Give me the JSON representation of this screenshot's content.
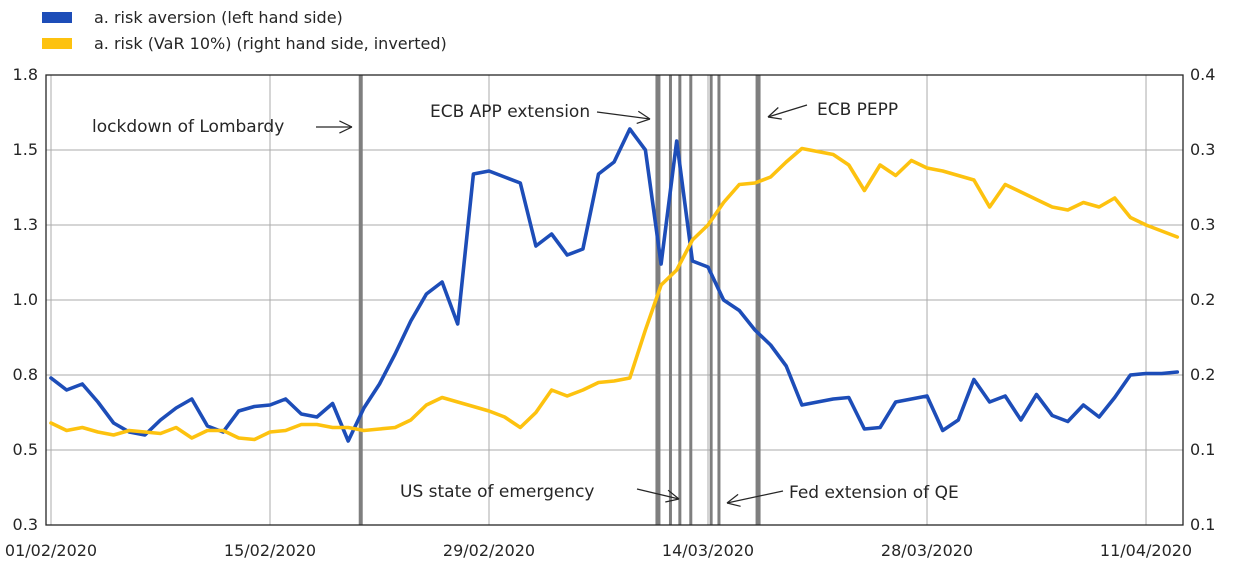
{
  "chart": {
    "legend": [
      {
        "label": "a. risk aversion (left hand side)",
        "color": "#1d4db8"
      },
      {
        "label": "a. risk (VaR 10%) (right hand side, inverted)",
        "color": "#fdc20f"
      }
    ],
    "annotations": [
      {
        "id": "lombardy-lockdown",
        "label": "lockdown of Lombardy"
      },
      {
        "id": "ecb-app-extension",
        "label": "ECB APP extension"
      },
      {
        "id": "ecb-pepp",
        "label": "ECB PEPP"
      },
      {
        "id": "us-state-of-emergency",
        "label": "US state of emergency"
      },
      {
        "id": "fed-qe-extension",
        "label": "Fed extension of QE"
      }
    ]
  },
  "chart_data": {
    "type": "line",
    "title": "",
    "x_axis": {
      "tick_labels": [
        "01/02/2020",
        "15/02/2020",
        "29/02/2020",
        "14/03/2020",
        "28/03/2020",
        "11/04/2020"
      ],
      "tick_days": [
        0,
        14,
        28,
        42,
        56,
        70
      ],
      "unit": "daily observations starting 01/02/2020"
    },
    "left_axis": {
      "tick_labels": [
        "1.8",
        "1.5",
        "1.3",
        "1.0",
        "0.8",
        "0.5",
        "0.3"
      ],
      "range": [
        0.25,
        1.75
      ],
      "label": "risk aversion"
    },
    "right_axis": {
      "tick_labels": [
        "0.4",
        "0.3",
        "0.3",
        "0.2",
        "0.2",
        "0.1",
        "0.1"
      ],
      "range": [
        0.1,
        0.4
      ],
      "note": "inverted"
    },
    "grid": true,
    "legend_position": "top-left",
    "series_start_day": 0,
    "series_step_days": 1,
    "series": [
      {
        "name": "a. risk aversion (left hand side)",
        "axis": "left",
        "color": "#1d4db8",
        "values": [
          0.74,
          0.7,
          0.72,
          0.66,
          0.59,
          0.56,
          0.55,
          0.6,
          0.64,
          0.67,
          0.58,
          0.56,
          0.63,
          0.645,
          0.65,
          0.67,
          0.62,
          0.61,
          0.655,
          0.53,
          0.64,
          0.72,
          0.82,
          0.93,
          1.02,
          1.06,
          0.92,
          1.42,
          1.43,
          1.41,
          1.39,
          1.18,
          1.22,
          1.15,
          1.17,
          1.42,
          1.46,
          1.57,
          1.5,
          1.12,
          1.53,
          1.13,
          1.11,
          1.0,
          0.965,
          0.9,
          0.85,
          0.78,
          0.65,
          0.66,
          0.67,
          0.675,
          0.57,
          0.575,
          0.66,
          0.67,
          0.68,
          0.565,
          0.6,
          0.735,
          0.66,
          0.68,
          0.6,
          0.685,
          0.615,
          0.595,
          0.65,
          0.61,
          0.675,
          0.75,
          0.755,
          0.755,
          0.76
        ]
      },
      {
        "name": "a. risk (VaR 10%) (right hand side, inverted)",
        "axis": "right",
        "color": "#fdc20f",
        "values": [
          0.168,
          0.163,
          0.165,
          0.162,
          0.16,
          0.163,
          0.162,
          0.161,
          0.165,
          0.158,
          0.163,
          0.163,
          0.158,
          0.157,
          0.162,
          0.163,
          0.167,
          0.167,
          0.165,
          0.165,
          0.163,
          0.164,
          0.165,
          0.17,
          0.18,
          0.185,
          0.182,
          0.179,
          0.176,
          0.172,
          0.165,
          0.175,
          0.19,
          0.186,
          0.19,
          0.195,
          0.196,
          0.198,
          0.23,
          0.26,
          0.27,
          0.29,
          0.3,
          0.315,
          0.327,
          0.328,
          0.332,
          0.342,
          0.351,
          0.349,
          0.347,
          0.34,
          0.323,
          0.34,
          0.333,
          0.343,
          0.338,
          0.336,
          0.333,
          0.33,
          0.312,
          0.327,
          0.322,
          0.317,
          0.312,
          0.31,
          0.315,
          0.312,
          0.318,
          0.305,
          0.3,
          0.296,
          0.292
        ]
      }
    ],
    "event_lines": {
      "color": "#7f7f7f",
      "days": [
        19.8,
        38.8,
        39.6,
        40.2,
        40.9,
        42.2,
        42.7,
        45.2
      ],
      "widths": [
        4,
        5,
        3,
        3,
        3,
        3,
        3,
        5
      ]
    }
  }
}
